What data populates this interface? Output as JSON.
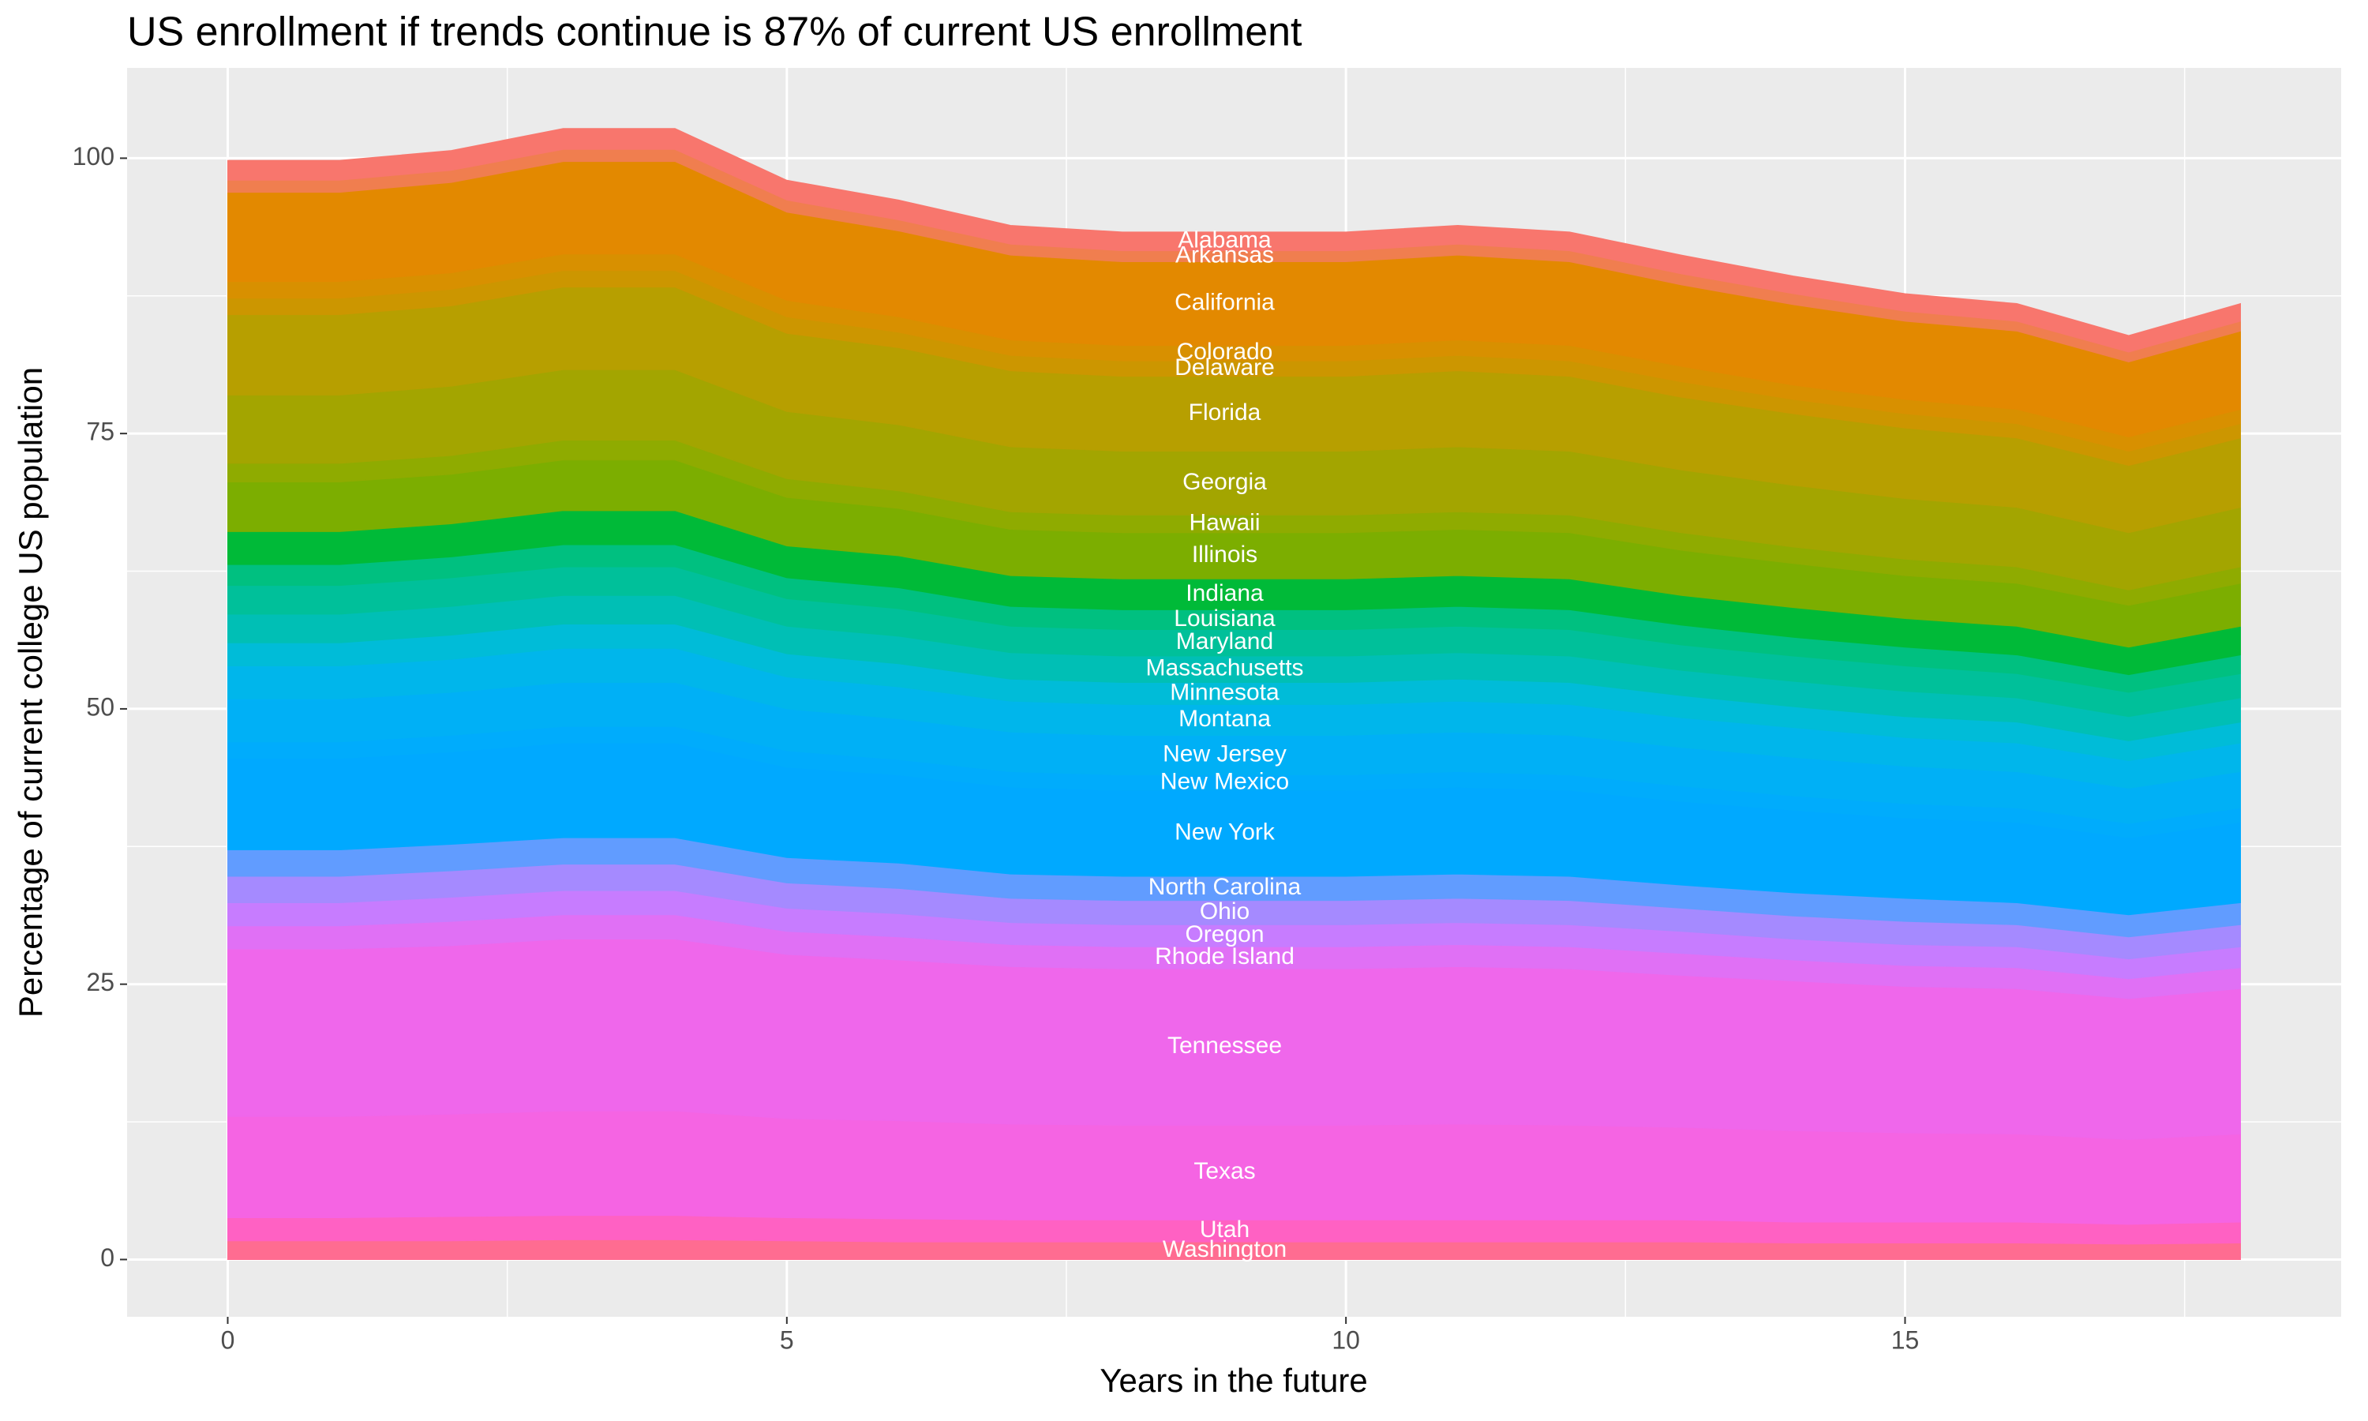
{
  "chart_data": {
    "type": "stacked-area",
    "title": "US enrollment if trends continue is 87% of current US enrollment",
    "x_label": "Years in the future",
    "y_label": "Percentage of current college US population",
    "x": [
      0,
      1,
      2,
      3,
      4,
      5,
      6,
      7,
      8,
      9,
      10,
      11,
      12,
      13,
      14,
      15,
      16,
      17,
      18
    ],
    "xlim": [
      -0.9,
      18.9
    ],
    "xticks": [
      0,
      5,
      10,
      15
    ],
    "ylim": [
      -5.2,
      108.2
    ],
    "yticks": [
      0,
      25,
      50,
      75,
      100
    ],
    "grid": true,
    "series": [
      {
        "name": "Washington",
        "color": "#ff6c91",
        "values": [
          1.7,
          1.7,
          1.7,
          1.8,
          1.8,
          1.7,
          1.6,
          1.6,
          1.6,
          1.6,
          1.6,
          1.6,
          1.6,
          1.6,
          1.5,
          1.5,
          1.5,
          1.4,
          1.5
        ]
      },
      {
        "name": "Utah",
        "color": "#ff61c3",
        "values": [
          2.1,
          2.1,
          2.2,
          2.2,
          2.2,
          2.1,
          2.1,
          2.0,
          2.0,
          2.0,
          2.0,
          2.0,
          2.0,
          2.0,
          1.9,
          1.9,
          1.9,
          1.8,
          1.9
        ]
      },
      {
        "name": "Texas",
        "color": "#f564e3",
        "values": [
          9.2,
          9.2,
          9.3,
          9.5,
          9.5,
          9.0,
          8.9,
          8.7,
          8.6,
          8.6,
          8.6,
          8.7,
          8.6,
          8.4,
          8.3,
          8.1,
          8.0,
          7.7,
          8.0
        ]
      },
      {
        "name": "Tennessee",
        "color": "#ef67eb",
        "values": [
          15.2,
          15.2,
          15.3,
          15.6,
          15.6,
          14.9,
          14.6,
          14.3,
          14.2,
          14.2,
          14.2,
          14.3,
          14.2,
          13.8,
          13.6,
          13.3,
          13.2,
          12.8,
          13.2
        ]
      },
      {
        "name": "Rhode Island",
        "color": "#e070f5",
        "values": [
          2.1,
          2.1,
          2.2,
          2.2,
          2.2,
          2.1,
          2.1,
          2.0,
          2.0,
          2.0,
          2.0,
          2.0,
          2.0,
          2.0,
          1.9,
          1.9,
          1.9,
          1.8,
          1.9
        ]
      },
      {
        "name": "Oregon",
        "color": "#c77cff",
        "values": [
          2.1,
          2.1,
          2.2,
          2.2,
          2.2,
          2.1,
          2.1,
          2.0,
          2.0,
          2.0,
          2.0,
          2.0,
          2.0,
          2.0,
          1.9,
          1.9,
          1.9,
          1.8,
          1.9
        ]
      },
      {
        "name": "Ohio",
        "color": "#a58aff",
        "values": [
          2.4,
          2.4,
          2.4,
          2.4,
          2.4,
          2.3,
          2.3,
          2.2,
          2.2,
          2.2,
          2.2,
          2.2,
          2.2,
          2.1,
          2.1,
          2.1,
          2.0,
          2.0,
          2.0
        ]
      },
      {
        "name": "North Carolina",
        "color": "#619cff",
        "values": [
          2.4,
          2.4,
          2.4,
          2.4,
          2.4,
          2.3,
          2.3,
          2.2,
          2.2,
          2.2,
          2.2,
          2.2,
          2.2,
          2.1,
          2.1,
          2.1,
          2.0,
          2.0,
          2.0
        ]
      },
      {
        "name": "New York",
        "color": "#00a9ff",
        "values": [
          8.3,
          8.3,
          8.4,
          8.6,
          8.6,
          8.2,
          8.0,
          7.9,
          7.8,
          7.8,
          7.8,
          7.9,
          7.8,
          7.6,
          7.5,
          7.3,
          7.3,
          7.0,
          7.3
        ]
      },
      {
        "name": "New Mexico",
        "color": "#00acfc",
        "values": [
          1.5,
          1.5,
          1.5,
          1.5,
          1.5,
          1.5,
          1.4,
          1.4,
          1.4,
          1.4,
          1.4,
          1.4,
          1.4,
          1.4,
          1.3,
          1.3,
          1.3,
          1.3,
          1.3
        ]
      },
      {
        "name": "New Jersey",
        "color": "#00b0f6",
        "values": [
          3.9,
          3.9,
          3.9,
          4.0,
          4.0,
          3.8,
          3.7,
          3.6,
          3.6,
          3.6,
          3.6,
          3.6,
          3.6,
          3.5,
          3.5,
          3.4,
          3.3,
          3.2,
          3.3
        ]
      },
      {
        "name": "Montana",
        "color": "#00b6eb",
        "values": [
          3.0,
          3.0,
          3.0,
          3.1,
          3.1,
          2.9,
          2.9,
          2.8,
          2.8,
          2.8,
          2.8,
          2.8,
          2.8,
          2.7,
          2.7,
          2.6,
          2.6,
          2.5,
          2.6
        ]
      },
      {
        "name": "Minnesota",
        "color": "#00bcd8",
        "values": [
          2.1,
          2.1,
          2.2,
          2.2,
          2.2,
          2.1,
          2.1,
          2.0,
          2.0,
          2.0,
          2.0,
          2.0,
          2.0,
          2.0,
          1.9,
          1.9,
          1.9,
          1.8,
          1.9
        ]
      },
      {
        "name": "Massachusetts",
        "color": "#00bfb5",
        "values": [
          2.6,
          2.6,
          2.6,
          2.6,
          2.6,
          2.5,
          2.5,
          2.4,
          2.4,
          2.4,
          2.4,
          2.4,
          2.4,
          2.3,
          2.3,
          2.3,
          2.2,
          2.2,
          2.2
        ]
      },
      {
        "name": "Maryland",
        "color": "#00c09a",
        "values": [
          2.6,
          2.6,
          2.6,
          2.6,
          2.6,
          2.5,
          2.5,
          2.4,
          2.4,
          2.4,
          2.4,
          2.4,
          2.4,
          2.3,
          2.3,
          2.3,
          2.2,
          2.2,
          2.2
        ]
      },
      {
        "name": "Louisiana",
        "color": "#00c080",
        "values": [
          1.9,
          1.9,
          1.9,
          2.0,
          2.0,
          1.9,
          1.9,
          1.8,
          1.8,
          1.8,
          1.8,
          1.8,
          1.8,
          1.8,
          1.7,
          1.7,
          1.7,
          1.6,
          1.7
        ]
      },
      {
        "name": "Indiana",
        "color": "#00ba38",
        "values": [
          3.0,
          3.0,
          3.0,
          3.1,
          3.1,
          2.9,
          2.9,
          2.8,
          2.8,
          2.8,
          2.8,
          2.8,
          2.8,
          2.7,
          2.7,
          2.6,
          2.6,
          2.5,
          2.6
        ]
      },
      {
        "name": "Illinois",
        "color": "#7cae00",
        "values": [
          4.5,
          4.5,
          4.5,
          4.6,
          4.6,
          4.4,
          4.3,
          4.2,
          4.2,
          4.2,
          4.2,
          4.2,
          4.2,
          4.1,
          4.0,
          3.9,
          3.9,
          3.8,
          3.9
        ]
      },
      {
        "name": "Hawaii",
        "color": "#8fab00",
        "values": [
          1.7,
          1.7,
          1.7,
          1.8,
          1.8,
          1.7,
          1.6,
          1.6,
          1.6,
          1.6,
          1.6,
          1.6,
          1.6,
          1.6,
          1.5,
          1.5,
          1.5,
          1.4,
          1.5
        ]
      },
      {
        "name": "Georgia",
        "color": "#a3a500",
        "values": [
          6.2,
          6.2,
          6.3,
          6.4,
          6.4,
          6.1,
          6.0,
          5.9,
          5.8,
          5.8,
          5.8,
          5.9,
          5.8,
          5.7,
          5.6,
          5.5,
          5.4,
          5.2,
          5.4
        ]
      },
      {
        "name": "Florida",
        "color": "#b79f00",
        "values": [
          7.3,
          7.3,
          7.3,
          7.5,
          7.5,
          7.1,
          7.0,
          6.9,
          6.8,
          6.8,
          6.8,
          6.9,
          6.8,
          6.6,
          6.5,
          6.4,
          6.3,
          6.1,
          6.3
        ]
      },
      {
        "name": "Delaware",
        "color": "#cc9600",
        "values": [
          1.5,
          1.5,
          1.5,
          1.5,
          1.5,
          1.5,
          1.4,
          1.4,
          1.4,
          1.4,
          1.4,
          1.4,
          1.4,
          1.4,
          1.3,
          1.3,
          1.3,
          1.3,
          1.3
        ]
      },
      {
        "name": "Colorado",
        "color": "#d89000",
        "values": [
          1.5,
          1.5,
          1.5,
          1.5,
          1.5,
          1.5,
          1.4,
          1.4,
          1.4,
          1.4,
          1.4,
          1.4,
          1.4,
          1.4,
          1.3,
          1.3,
          1.3,
          1.3,
          1.3
        ]
      },
      {
        "name": "California",
        "color": "#e38900",
        "values": [
          8.1,
          8.1,
          8.2,
          8.4,
          8.4,
          8.0,
          7.8,
          7.7,
          7.6,
          7.6,
          7.6,
          7.7,
          7.6,
          7.4,
          7.3,
          7.1,
          7.1,
          6.8,
          7.1
        ]
      },
      {
        "name": "Arkansas",
        "color": "#f07e4f",
        "values": [
          1.1,
          1.1,
          1.1,
          1.1,
          1.1,
          1.1,
          1.0,
          1.0,
          1.0,
          1.0,
          1.0,
          1.0,
          1.0,
          1.0,
          1.0,
          0.9,
          0.9,
          0.9,
          0.9
        ]
      },
      {
        "name": "Alabama",
        "color": "#f8766d",
        "values": [
          1.8,
          1.8,
          1.8,
          1.9,
          1.9,
          1.8,
          1.8,
          1.7,
          1.7,
          1.7,
          1.7,
          1.7,
          1.7,
          1.7,
          1.6,
          1.6,
          1.6,
          1.5,
          1.6
        ]
      }
    ]
  }
}
